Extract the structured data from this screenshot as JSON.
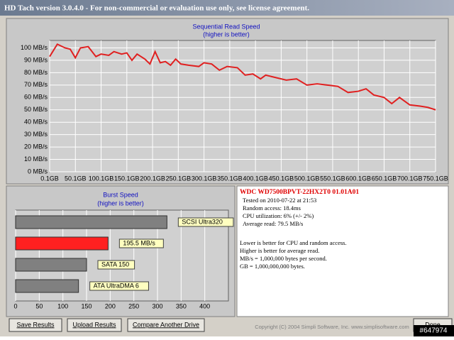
{
  "window": {
    "title": "HD Tach version 3.0.4.0  - For non-commercial or evaluation use only, see license agreement."
  },
  "read_chart": {
    "type": "line",
    "title": "Sequential Read Speed",
    "subtitle": "(higher is better)",
    "color": "#e02020",
    "x": [
      0.1,
      15,
      30,
      40,
      50,
      60,
      75,
      90,
      100,
      115,
      125,
      140,
      150,
      160,
      170,
      185,
      195,
      205,
      215,
      225,
      235,
      245,
      255,
      270,
      290,
      300,
      315,
      330,
      345,
      365,
      380,
      395,
      410,
      420,
      440,
      460,
      480,
      500,
      520,
      540,
      560,
      580,
      600,
      615,
      630,
      650,
      665,
      680,
      700,
      720,
      735,
      750.1
    ],
    "values": [
      93,
      103,
      100,
      99,
      92,
      100,
      101,
      93,
      95,
      94,
      97,
      95,
      96,
      90,
      95,
      91,
      87,
      97,
      88,
      89,
      86,
      91,
      87,
      86,
      85,
      88,
      87,
      82,
      85,
      84,
      78,
      79,
      75,
      78,
      76,
      74,
      75,
      70,
      71,
      70,
      69,
      64,
      65,
      67,
      62,
      60,
      55,
      60,
      54,
      53,
      52,
      50
    ],
    "xlim": [
      0.1,
      750.1
    ],
    "ylim": [
      0,
      106
    ],
    "xticks": [
      {
        "value": 0.1,
        "label": "0.1GB"
      },
      {
        "value": 50.1,
        "label": "50.1GB"
      },
      {
        "value": 100.1,
        "label": "100.1GB"
      },
      {
        "value": 150.1,
        "label": "150.1GB"
      },
      {
        "value": 200.1,
        "label": "200.1GB"
      },
      {
        "value": 250.1,
        "label": "250.1GB"
      },
      {
        "value": 300.1,
        "label": "300.1GB"
      },
      {
        "value": 350.1,
        "label": "350.1GB"
      },
      {
        "value": 400.1,
        "label": "400.1GB"
      },
      {
        "value": 450.1,
        "label": "450.1GB"
      },
      {
        "value": 500.1,
        "label": "500.1GB"
      },
      {
        "value": 550.1,
        "label": "550.1GB"
      },
      {
        "value": 600.1,
        "label": "600.1GB"
      },
      {
        "value": 650.1,
        "label": "650.1GB"
      },
      {
        "value": 700.1,
        "label": "700.1GB"
      },
      {
        "value": 750.1,
        "label": "750.1GB"
      }
    ],
    "yticks": [
      {
        "value": 0,
        "label": "0 MB/s"
      },
      {
        "value": 10,
        "label": "10 MB/s"
      },
      {
        "value": 20,
        "label": "20 MB/s"
      },
      {
        "value": 30,
        "label": "30 MB/s"
      },
      {
        "value": 40,
        "label": "40 MB/s"
      },
      {
        "value": 50,
        "label": "50 MB/s"
      },
      {
        "value": 60,
        "label": "60 MB/s"
      },
      {
        "value": 70,
        "label": "70 MB/s"
      },
      {
        "value": 80,
        "label": "80 MB/s"
      },
      {
        "value": 90,
        "label": "90 MB/s"
      },
      {
        "value": 100,
        "label": "100 MB/s"
      }
    ],
    "grid": true
  },
  "burst_chart": {
    "type": "bar",
    "title": "Burst Speed",
    "subtitle": "(higher is better)",
    "bars": [
      {
        "label": "SCSI Ultra320",
        "value": 320,
        "color": "#808080"
      },
      {
        "label": "195.5 MB/s",
        "value": 195.5,
        "color": "#ff2020"
      },
      {
        "label": "SATA 150",
        "value": 150,
        "color": "#808080"
      },
      {
        "label": "ATA UltraDMA 6",
        "value": 133,
        "color": "#808080"
      }
    ],
    "xlim": [
      0,
      450
    ],
    "xticks": [
      0,
      50,
      100,
      150,
      200,
      250,
      300,
      350,
      400
    ],
    "grid": true
  },
  "info": {
    "drive": "WDC  WD7500BPVT-22HX2T0 01.01A01",
    "lines": [
      "Tested on 2010-07-22 at 21:53",
      "Random access: 18.4ms",
      "CPU utilization: 6% (+/- 2%)",
      "Average read: 79.5 MB/s"
    ],
    "notes": [
      "Lower is better for CPU and random access.",
      "Higher is better for average read.",
      "MB/s = 1,000,000 bytes per second.",
      "GB = 1,000,000,000 bytes."
    ]
  },
  "buttons": [
    "Save Results",
    "Upload Results",
    "Compare Another Drive",
    "Done"
  ],
  "footer": "Copyright (C) 2004 Simpli Software, Inc. www.simplisoftware.com",
  "watermark": "#647974"
}
